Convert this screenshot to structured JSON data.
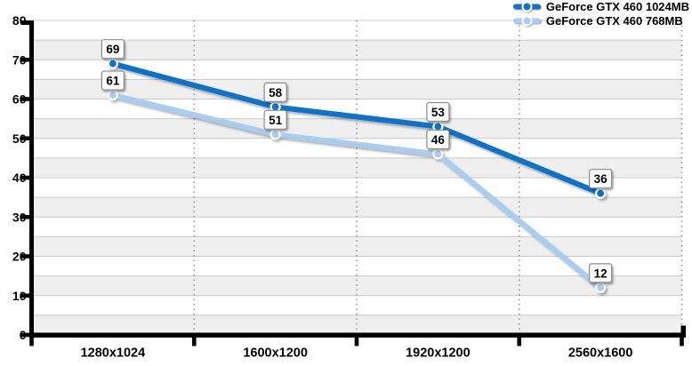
{
  "chart_data": {
    "type": "line",
    "title": "",
    "xlabel": "",
    "ylabel": "",
    "categories": [
      "1280x1024",
      "1600x1200",
      "1920x1200",
      "2560x1600"
    ],
    "series": [
      {
        "name": "GeForce GTX 460 1024MB",
        "color": "#1172C8",
        "values": [
          69,
          58,
          53,
          36
        ]
      },
      {
        "name": "GeForce GTX 460 768MB",
        "color": "#A9CDF0",
        "values": [
          61,
          51,
          46,
          12
        ]
      }
    ],
    "ylim": [
      0,
      80
    ],
    "y_tick_step": 10,
    "minor_grid_step": 5,
    "y_tick_labels": [
      "0",
      "10",
      "20",
      "30",
      "40",
      "50",
      "60",
      "70",
      "80"
    ],
    "data_labels": true,
    "grid": true,
    "legend_position": "top-right",
    "colors": {
      "background": "#FFFFFF",
      "band": "#EFEFEF",
      "gridline": "#C8C8C8",
      "dotted_boundary": "#999999",
      "axis": "#000000",
      "marker_ring": "#FFFFFF",
      "label_box_bg": "#FFFFFF",
      "label_box_border": "#8A8A8A",
      "text": "#000000"
    }
  }
}
